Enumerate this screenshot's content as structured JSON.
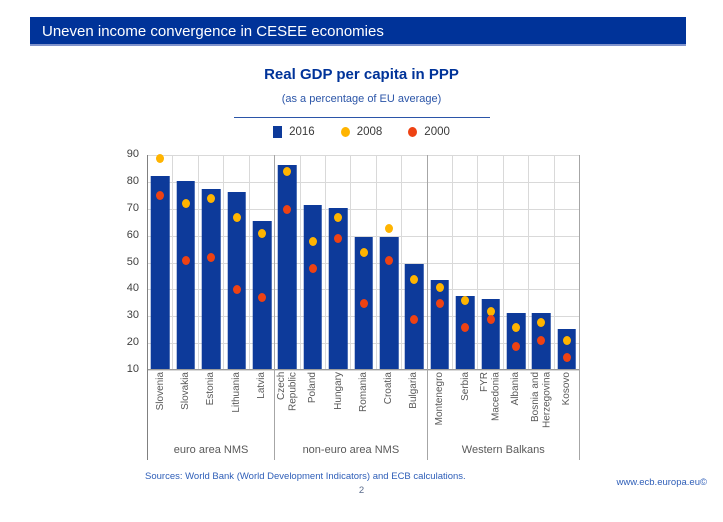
{
  "slide": {
    "header": "Uneven income convergence in CESEE economies",
    "page_number": "2",
    "footer_sources": "Sources: World Bank (World Development Indicators) and ECB calculations.",
    "footer_url": "www.ecb.europa.eu©"
  },
  "colors": {
    "header_bar": "#003399",
    "bar_2016": "#0D3A9A",
    "dot_2008": "#FFB400",
    "dot_2000": "#EE4213",
    "gridline": "#D9D9D9",
    "divider": "#A6A6A6"
  },
  "chart_data": {
    "type": "bar",
    "title": "Real GDP per capita in PPP",
    "subtitle": "(as a percentage of EU average)",
    "xlabel": "",
    "ylabel": "",
    "ylim": [
      10,
      90
    ],
    "yticks": [
      90,
      80,
      70,
      60,
      50,
      40,
      30,
      20,
      10
    ],
    "grid": true,
    "legend_position": "top-center",
    "legend": [
      {
        "label": "2016",
        "marker": "square",
        "color": "#0D3A9A"
      },
      {
        "label": "2008",
        "marker": "dot",
        "color": "#FFB400"
      },
      {
        "label": "2000",
        "marker": "dot",
        "color": "#EE4213"
      }
    ],
    "series_note": "bars show 2016; yellow dots 2008; red dots 2000",
    "groups": [
      {
        "label": "euro area NMS",
        "countries": [
          {
            "name": "Slovenia",
            "v2016": 82,
            "v2008": 89,
            "v2000": 75
          },
          {
            "name": "Slovakia",
            "v2016": 80,
            "v2008": 72,
            "v2000": 51
          },
          {
            "name": "Estonia",
            "v2016": 77,
            "v2008": 74,
            "v2000": 52
          },
          {
            "name": "Lithuania",
            "v2016": 76,
            "v2008": 67,
            "v2000": 40
          },
          {
            "name": "Latvia",
            "v2016": 65,
            "v2008": 61,
            "v2000": 37
          }
        ]
      },
      {
        "label": "non-euro area NMS",
        "countries": [
          {
            "name": "Czech Republic",
            "v2016": 86,
            "v2008": 84,
            "v2000": 70
          },
          {
            "name": "Poland",
            "v2016": 71,
            "v2008": 58,
            "v2000": 48
          },
          {
            "name": "Hungary",
            "v2016": 70,
            "v2008": 67,
            "v2000": 59
          },
          {
            "name": "Romania",
            "v2016": 59,
            "v2008": 54,
            "v2000": 35
          },
          {
            "name": "Croatia",
            "v2016": 59,
            "v2008": 63,
            "v2000": 51
          },
          {
            "name": "Bulgaria",
            "v2016": 49,
            "v2008": 44,
            "v2000": 29
          }
        ]
      },
      {
        "label": "Western Balkans",
        "countries": [
          {
            "name": "Montenegro",
            "v2016": 43,
            "v2008": 41,
            "v2000": 35
          },
          {
            "name": "Serbia",
            "v2016": 37,
            "v2008": 36,
            "v2000": 26
          },
          {
            "name": "FYR Macedonia",
            "v2016": 36,
            "v2008": 32,
            "v2000": 29
          },
          {
            "name": "Albania",
            "v2016": 31,
            "v2008": 26,
            "v2000": 19
          },
          {
            "name": "Bosnia and Herzegovina",
            "v2016": 31,
            "v2008": 28,
            "v2000": 21
          },
          {
            "name": "Kosovo",
            "v2016": 25,
            "v2008": 21,
            "v2000": 15
          }
        ]
      }
    ]
  }
}
